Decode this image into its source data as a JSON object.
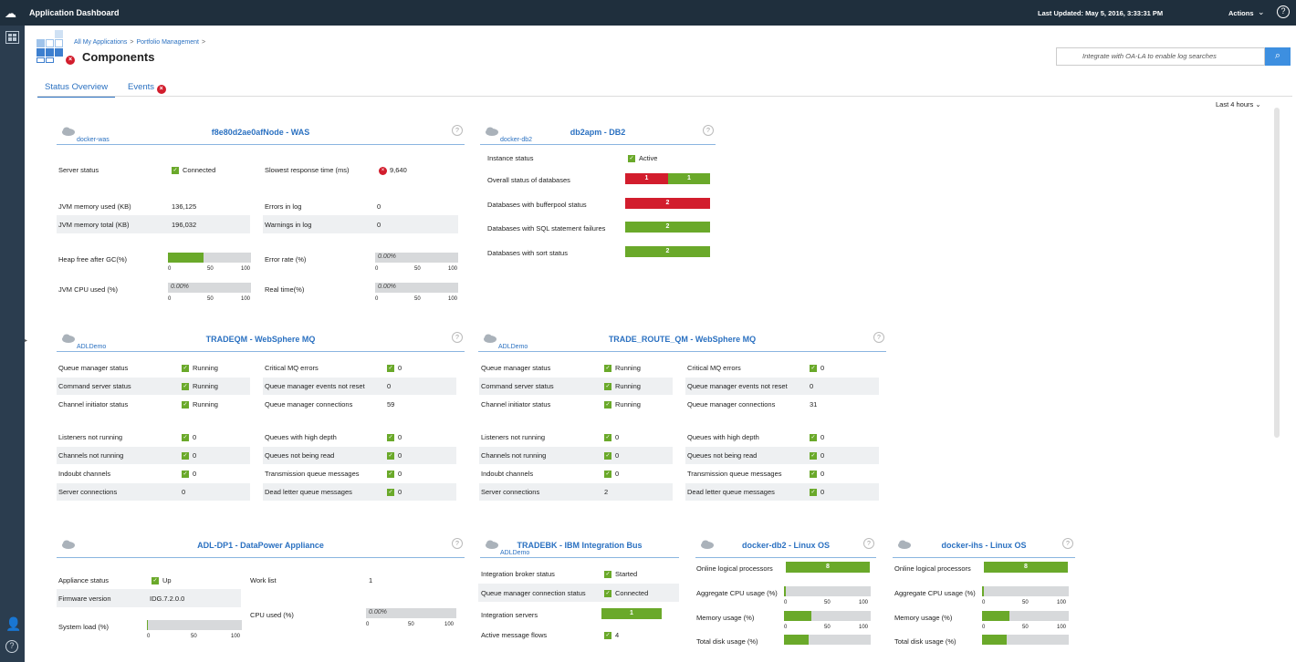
{
  "topbar": {
    "title": "Application Dashboard",
    "last_updated": "Last Updated: May 5, 2016, 3:33:31 PM",
    "actions": "Actions",
    "help": "?"
  },
  "breadcrumb": {
    "item1": "All My Applications",
    "item2": "Portfolio Management",
    "sep": ">"
  },
  "page_title": "Components",
  "search": {
    "placeholder": "Integrate with OA-LA to enable log searches"
  },
  "tabs": {
    "status": "Status Overview",
    "events": "Events"
  },
  "time_range": "Last 4 hours",
  "was": {
    "title": "f8e80d2ae0afNode - WAS",
    "sub": "docker-was",
    "server_status_l": "Server status",
    "server_status_v": "Connected",
    "slowest_l": "Slowest response time (ms)",
    "slowest_v": "9,640",
    "jvm_used_l": "JVM memory used (KB)",
    "jvm_used_v": "136,125",
    "errors_log_l": "Errors in log",
    "errors_log_v": "0",
    "jvm_total_l": "JVM memory total (KB)",
    "jvm_total_v": "196,032",
    "warn_log_l": "Warnings in log",
    "warn_log_v": "0",
    "heap_l": "Heap free after GC(%)",
    "heap_pct": 43,
    "err_rate_l": "Error rate (%)",
    "err_rate_v": "0.00%",
    "jvm_cpu_l": "JVM CPU used (%)",
    "jvm_cpu_v": "0.00%",
    "real_time_l": "Real time(%)",
    "real_time_v": "0.00%"
  },
  "ticks": {
    "t0": "0",
    "t50": "50",
    "t100": "100"
  },
  "db2": {
    "title": "db2apm - DB2",
    "sub": "docker-db2",
    "inst_l": "Instance status",
    "inst_v": "Active",
    "overall_l": "Overall status of databases",
    "overall_red": "1",
    "overall_green": "1",
    "bufferpool_l": "Databases with bufferpool status",
    "bufferpool_v": "2",
    "sql_l": "Databases with SQL statement failures",
    "sql_v": "2",
    "sort_l": "Databases with sort status",
    "sort_v": "2"
  },
  "mq1": {
    "title": "TRADEQM - WebSphere MQ",
    "sub": "ADLDemo",
    "rows_left": [
      {
        "l": "Queue manager status",
        "v": "Running"
      },
      {
        "l": "Command server status",
        "v": "Running"
      },
      {
        "l": "Channel initiator status",
        "v": "Running"
      },
      {
        "l": "Listeners not running",
        "v": "0"
      },
      {
        "l": "Channels not running",
        "v": "0"
      },
      {
        "l": "Indoubt channels",
        "v": "0"
      },
      {
        "l": "Server connections",
        "v": "0"
      }
    ],
    "rows_right": [
      {
        "l": "Critical MQ errors",
        "v": "0"
      },
      {
        "l": "Queue manager events not reset",
        "v": "0"
      },
      {
        "l": "Queue manager connections",
        "v": "59"
      },
      {
        "l": "Queues with high depth",
        "v": "0"
      },
      {
        "l": "Queues not being read",
        "v": "0"
      },
      {
        "l": "Transmission queue messages",
        "v": "0"
      },
      {
        "l": "Dead letter queue messages",
        "v": "0"
      }
    ]
  },
  "mq2": {
    "title": "TRADE_ROUTE_QM - WebSphere MQ",
    "sub": "ADLDemo",
    "rows_left": [
      {
        "l": "Queue manager status",
        "v": "Running"
      },
      {
        "l": "Command server status",
        "v": "Running"
      },
      {
        "l": "Channel initiator status",
        "v": "Running"
      },
      {
        "l": "Listeners not running",
        "v": "0"
      },
      {
        "l": "Channels not running",
        "v": "0"
      },
      {
        "l": "Indoubt channels",
        "v": "0"
      },
      {
        "l": "Server connections",
        "v": "2"
      }
    ],
    "rows_right": [
      {
        "l": "Critical MQ errors",
        "v": "0"
      },
      {
        "l": "Queue manager events not reset",
        "v": "0"
      },
      {
        "l": "Queue manager connections",
        "v": "31"
      },
      {
        "l": "Queues with high depth",
        "v": "0"
      },
      {
        "l": "Queues not being read",
        "v": "0"
      },
      {
        "l": "Transmission queue messages",
        "v": "0"
      },
      {
        "l": "Dead letter queue messages",
        "v": "0"
      }
    ]
  },
  "dp": {
    "title": "ADL-DP1 - DataPower Appliance",
    "app_status_l": "Appliance status",
    "app_status_v": "Up",
    "work_list_l": "Work list",
    "work_list_v": "1",
    "fw_l": "Firmware version",
    "fw_v": "IDG.7.2.0.0",
    "cpu_l": "CPU used (%)",
    "cpu_v": "0.00%",
    "sysload_l": "System load (%)",
    "sysload_pct": 1
  },
  "iib": {
    "title": "TRADEBK - IBM Integration Bus",
    "sub": "ADLDemo",
    "broker_l": "Integration broker status",
    "broker_v": "Started",
    "qmconn_l": "Queue manager connection status",
    "qmconn_v": "Connected",
    "servers_l": "Integration servers",
    "servers_v": "1",
    "flows_l": "Active message flows",
    "flows_v": "4"
  },
  "linux1": {
    "title": "docker-db2 - Linux OS",
    "procs_l": "Online logical processors",
    "procs_v": "8",
    "cpu_l": "Aggregate CPU usage (%)",
    "cpu_pct": 2,
    "mem_l": "Memory usage (%)",
    "mem_pct": 32,
    "disk_l": "Total disk usage (%)",
    "disk_pct": 28
  },
  "linux2": {
    "title": "docker-ihs - Linux OS",
    "procs_l": "Online logical processors",
    "procs_v": "8",
    "cpu_l": "Aggregate CPU usage (%)",
    "cpu_pct": 2,
    "mem_l": "Memory usage (%)",
    "mem_pct": 32,
    "disk_l": "Total disk usage (%)",
    "disk_pct": 28
  }
}
